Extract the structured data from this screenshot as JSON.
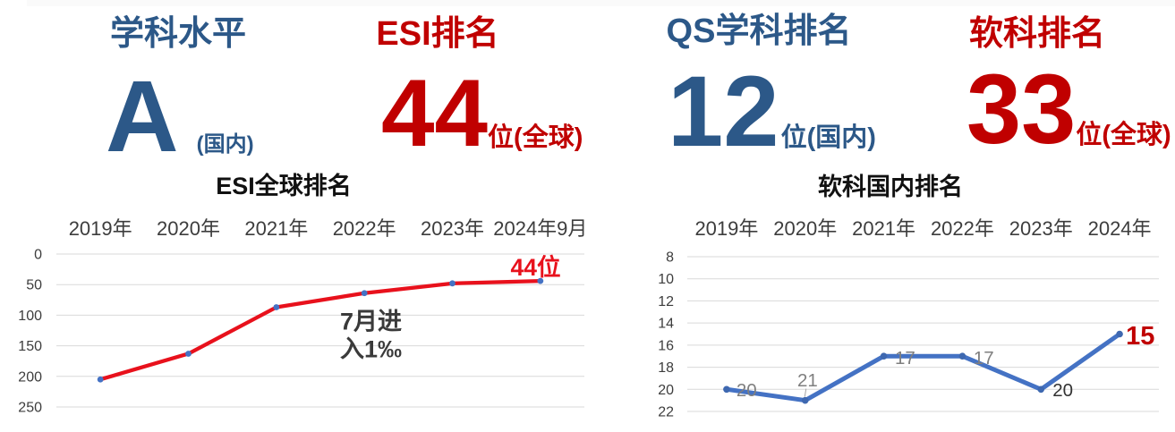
{
  "stats": [
    {
      "title": "学科水平",
      "value": "A",
      "suffix": "(国内)",
      "color": "#2c5888"
    },
    {
      "title": "ESI排名",
      "value": "44",
      "suffix": "位(全球)",
      "color": "#c00000"
    },
    {
      "title": "QS学科排名",
      "value": "12",
      "suffix": "位(国内)",
      "color": "#2c5888"
    },
    {
      "title": "软科排名",
      "value": "33",
      "suffix": "位(全球)",
      "color": "#c00000"
    }
  ],
  "chart_data": [
    {
      "type": "line",
      "title": "ESI全球排名",
      "categories": [
        "2019年",
        "2020年",
        "2021年",
        "2022年",
        "2023年",
        "2024年9月"
      ],
      "values": [
        205,
        163,
        87,
        64,
        48,
        44
      ],
      "ylim": [
        0,
        250
      ],
      "ystep": 50,
      "y_axis_reversed": true,
      "grid": true,
      "legend": "none",
      "line_color": "#e8111c",
      "marker_color": "#4472c4",
      "point_label": {
        "text": "44位",
        "color": "#e8111c"
      },
      "annotation": {
        "lines": [
          "7月进",
          "入1‰"
        ],
        "color": "#3a3a3a"
      }
    },
    {
      "type": "line",
      "title": "软科国内排名",
      "categories": [
        "2019年",
        "2020年",
        "2021年",
        "2022年",
        "2023年",
        "2024年"
      ],
      "values": [
        20,
        21,
        17,
        17,
        20,
        15
      ],
      "ylim": [
        8,
        22
      ],
      "ystep": 2,
      "y_axis_reversed": true,
      "grid": true,
      "legend": "none",
      "line_color": "#4472c4",
      "marker_color": "#3e68b0",
      "data_labels": [
        {
          "text": "20",
          "color": "#7f7f7f"
        },
        {
          "text": "21",
          "color": "#7f7f7f"
        },
        {
          "text": "17",
          "color": "#7f7f7f"
        },
        {
          "text": "17",
          "color": "#7f7f7f"
        },
        {
          "text": "20",
          "color": "#333333"
        },
        {
          "text": "15",
          "color": "#c00000",
          "emphasis": true
        }
      ]
    }
  ]
}
